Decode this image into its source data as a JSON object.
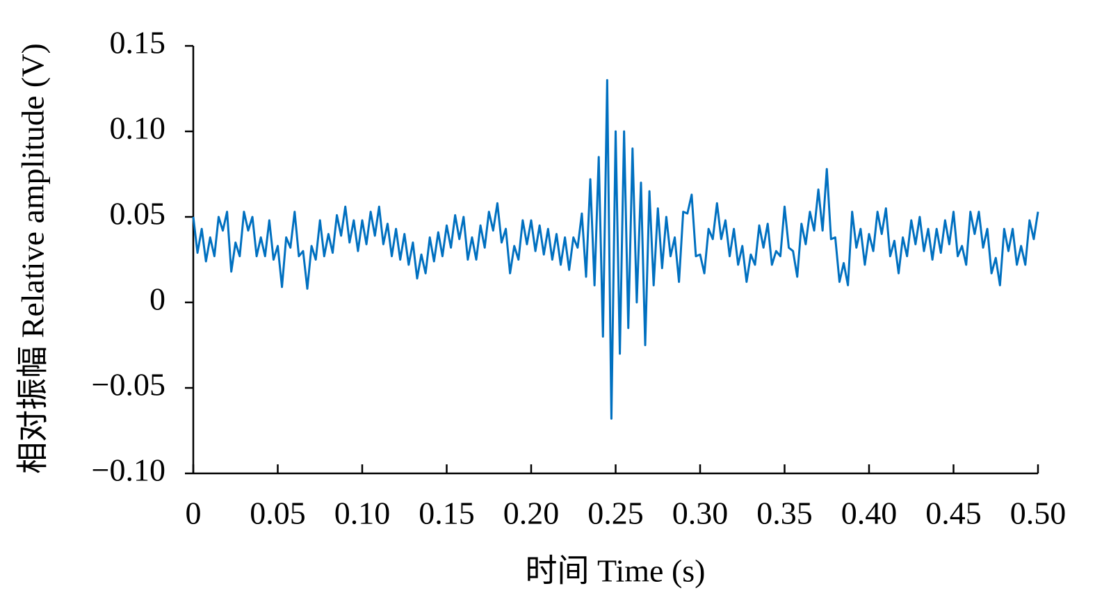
{
  "chart_data": {
    "type": "line",
    "xlabel": "时间 Time (s)",
    "ylabel": "相对振幅 Relative amplitude (V)",
    "xlim": [
      0,
      0.5
    ],
    "ylim": [
      -0.1,
      0.15
    ],
    "xticks": [
      0,
      0.05,
      {
        "value": 0.1,
        "label": "0.10"
      },
      0.15,
      {
        "value": 0.2,
        "label": "0.20"
      },
      0.25,
      {
        "value": 0.3,
        "label": "0.30"
      },
      0.35,
      {
        "value": 0.4,
        "label": "0.40"
      },
      0.45,
      {
        "value": 0.5,
        "label": "0.50"
      }
    ],
    "yticks": [
      {
        "value": -0.1,
        "label": "−0.10"
      },
      {
        "value": -0.05,
        "label": "−0.05"
      },
      0,
      0.05,
      {
        "value": 0.1,
        "label": "0.10"
      },
      0.15
    ],
    "x": [
      0,
      0.0025,
      0.005,
      0.0075,
      0.01,
      0.0125,
      0.015,
      0.0175,
      0.02,
      0.0225,
      0.025,
      0.0275,
      0.03,
      0.0325,
      0.035,
      0.0375,
      0.04,
      0.0425,
      0.045,
      0.0475,
      0.05,
      0.0525,
      0.055,
      0.0575,
      0.06,
      0.0625,
      0.065,
      0.0675,
      0.07,
      0.0725,
      0.075,
      0.0775,
      0.08,
      0.0825,
      0.085,
      0.0875,
      0.09,
      0.0925,
      0.095,
      0.0975,
      0.1,
      0.1025,
      0.105,
      0.1075,
      0.11,
      0.1125,
      0.115,
      0.1175,
      0.12,
      0.1225,
      0.125,
      0.1275,
      0.13,
      0.1325,
      0.135,
      0.1375,
      0.14,
      0.1425,
      0.145,
      0.1475,
      0.15,
      0.1525,
      0.155,
      0.1575,
      0.16,
      0.1625,
      0.165,
      0.1675,
      0.17,
      0.1725,
      0.175,
      0.1775,
      0.18,
      0.1825,
      0.185,
      0.1875,
      0.19,
      0.1925,
      0.195,
      0.1975,
      0.2,
      0.2025,
      0.205,
      0.2075,
      0.21,
      0.2125,
      0.215,
      0.2175,
      0.22,
      0.2225,
      0.225,
      0.2275,
      0.23,
      0.2325,
      0.235,
      0.2375,
      0.24,
      0.2425,
      0.245,
      0.2475,
      0.25,
      0.2525,
      0.255,
      0.2575,
      0.26,
      0.2625,
      0.265,
      0.2675,
      0.27,
      0.2725,
      0.275,
      0.2775,
      0.28,
      0.2825,
      0.285,
      0.2875,
      0.29,
      0.2925,
      0.295,
      0.2975,
      0.3,
      0.3025,
      0.305,
      0.3075,
      0.31,
      0.3125,
      0.315,
      0.3175,
      0.32,
      0.3225,
      0.325,
      0.3275,
      0.33,
      0.3325,
      0.335,
      0.3375,
      0.34,
      0.3425,
      0.345,
      0.3475,
      0.35,
      0.3525,
      0.355,
      0.3575,
      0.36,
      0.3625,
      0.365,
      0.3675,
      0.37,
      0.3725,
      0.375,
      0.3775,
      0.38,
      0.3825,
      0.385,
      0.3875,
      0.39,
      0.3925,
      0.395,
      0.3975,
      0.4,
      0.4025,
      0.405,
      0.4075,
      0.41,
      0.4125,
      0.415,
      0.4175,
      0.42,
      0.4225,
      0.425,
      0.4275,
      0.43,
      0.4325,
      0.435,
      0.4375,
      0.44,
      0.4425,
      0.445,
      0.4475,
      0.45,
      0.4525,
      0.455,
      0.4575,
      0.46,
      0.4625,
      0.465,
      0.4675,
      0.47,
      0.4725,
      0.475,
      0.4775,
      0.48,
      0.4825,
      0.485,
      0.4875,
      0.49,
      0.4925,
      0.495,
      0.4975,
      0.5
    ],
    "series": [
      {
        "color": "#0070c0",
        "values": [
          0.05,
          0.029,
          0.043,
          0.024,
          0.038,
          0.027,
          0.05,
          0.042,
          0.053,
          0.018,
          0.035,
          0.027,
          0.053,
          0.042,
          0.05,
          0.027,
          0.038,
          0.027,
          0.048,
          0.025,
          0.033,
          0.009,
          0.038,
          0.032,
          0.053,
          0.027,
          0.03,
          0.008,
          0.033,
          0.025,
          0.048,
          0.027,
          0.04,
          0.029,
          0.051,
          0.039,
          0.056,
          0.035,
          0.048,
          0.03,
          0.048,
          0.034,
          0.053,
          0.039,
          0.056,
          0.034,
          0.046,
          0.027,
          0.043,
          0.025,
          0.04,
          0.022,
          0.035,
          0.014,
          0.028,
          0.017,
          0.038,
          0.024,
          0.041,
          0.027,
          0.045,
          0.032,
          0.051,
          0.037,
          0.05,
          0.025,
          0.038,
          0.025,
          0.045,
          0.032,
          0.053,
          0.042,
          0.058,
          0.035,
          0.043,
          0.017,
          0.033,
          0.025,
          0.048,
          0.034,
          0.048,
          0.03,
          0.045,
          0.028,
          0.043,
          0.025,
          0.04,
          0.022,
          0.038,
          0.019,
          0.038,
          0.032,
          0.052,
          0.015,
          0.072,
          0.01,
          0.085,
          -0.02,
          0.13,
          -0.068,
          0.1,
          -0.03,
          0.1,
          -0.015,
          0.09,
          0.0,
          0.07,
          -0.025,
          0.065,
          0.01,
          0.055,
          0.02,
          0.05,
          0.027,
          0.038,
          0.012,
          0.053,
          0.052,
          0.063,
          0.027,
          0.028,
          0.017,
          0.043,
          0.037,
          0.058,
          0.037,
          0.048,
          0.027,
          0.043,
          0.022,
          0.033,
          0.012,
          0.028,
          0.022,
          0.045,
          0.032,
          0.046,
          0.022,
          0.03,
          0.027,
          0.056,
          0.032,
          0.03,
          0.015,
          0.046,
          0.034,
          0.053,
          0.042,
          0.066,
          0.042,
          0.078,
          0.037,
          0.038,
          0.012,
          0.023,
          0.01,
          0.053,
          0.032,
          0.043,
          0.022,
          0.04,
          0.03,
          0.053,
          0.04,
          0.055,
          0.027,
          0.036,
          0.017,
          0.038,
          0.027,
          0.048,
          0.034,
          0.05,
          0.03,
          0.043,
          0.025,
          0.043,
          0.029,
          0.048,
          0.034,
          0.053,
          0.027,
          0.033,
          0.022,
          0.053,
          0.04,
          0.053,
          0.032,
          0.043,
          0.017,
          0.026,
          0.01,
          0.043,
          0.03,
          0.043,
          0.022,
          0.033,
          0.022,
          0.048,
          0.037,
          0.053
        ]
      }
    ]
  }
}
